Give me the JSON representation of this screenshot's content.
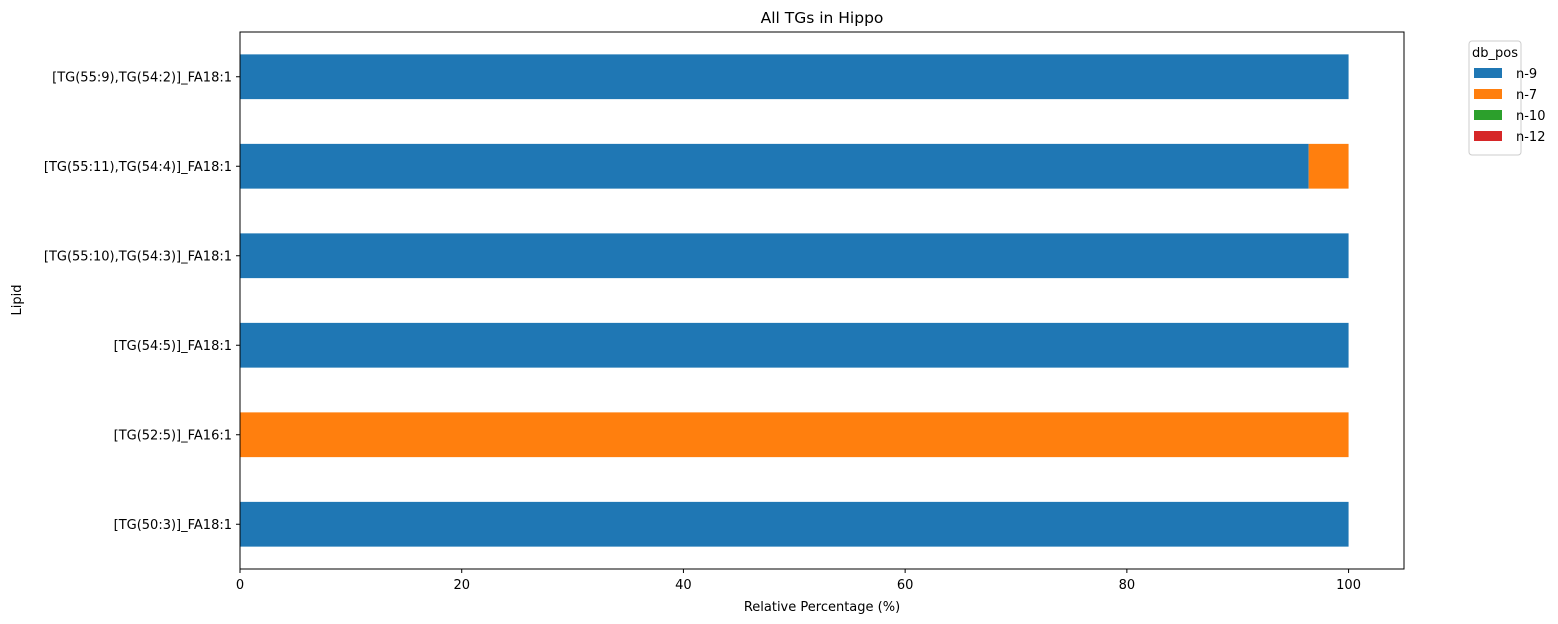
{
  "chart_data": {
    "type": "bar",
    "orientation": "horizontal",
    "stacked": true,
    "title": "All TGs in Hippo",
    "xlabel": "Relative Percentage (%)",
    "ylabel": "Lipid",
    "xlim": [
      0,
      105
    ],
    "xticks": [
      "0",
      "20",
      "40",
      "60",
      "80",
      "100"
    ],
    "grid": false,
    "categories": [
      "[TG(50:3)]_FA18:1",
      "[TG(52:5)]_FA16:1",
      "[TG(54:5)]_FA18:1",
      "[TG(55:10),TG(54:3)]_FA18:1",
      "[TG(55:11),TG(54:4)]_FA18:1",
      "[TG(55:9),TG(54:2)]_FA18:1"
    ],
    "series": [
      {
        "name": "n-9",
        "color": "#1f77b4",
        "values": [
          100,
          0,
          100,
          100,
          96.4,
          100
        ]
      },
      {
        "name": "n-7",
        "color": "#ff7f0e",
        "values": [
          0,
          100,
          0,
          0,
          3.6,
          0
        ]
      },
      {
        "name": "n-10",
        "color": "#2ca02c",
        "values": [
          0,
          0,
          0,
          0,
          0,
          0
        ]
      },
      {
        "name": "n-12",
        "color": "#d62728",
        "values": [
          0,
          0,
          0,
          0,
          0,
          0
        ]
      }
    ],
    "legend": {
      "title": "db_pos",
      "placement": "outside-top-right"
    }
  }
}
